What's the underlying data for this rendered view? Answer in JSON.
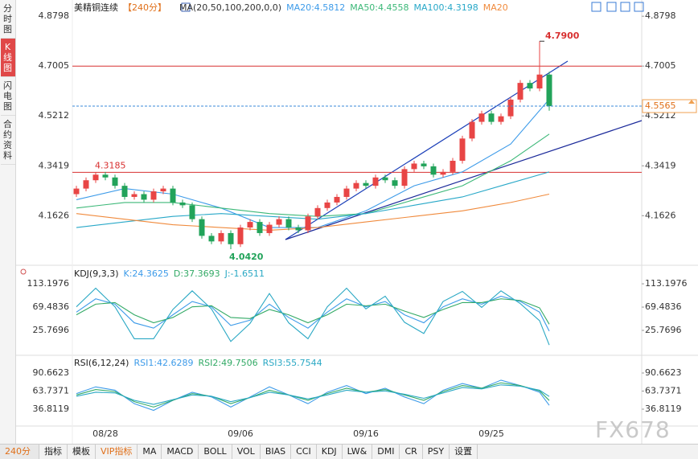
{
  "chart_data": [
    {
      "type": "candlestick",
      "title": "美精铜连续",
      "period": "【240分】",
      "indicator": "MA(20,50,100,200,0,0)",
      "categories": [
        null,
        null,
        null,
        "08/28",
        null,
        null,
        null,
        null,
        null,
        null,
        null,
        null,
        null,
        null,
        null,
        null,
        null,
        "09/06",
        null,
        null,
        null,
        null,
        null,
        null,
        null,
        null,
        null,
        null,
        null,
        null,
        "09/16",
        null,
        null,
        null,
        null,
        null,
        null,
        null,
        null,
        null,
        null,
        null,
        null,
        "09/25",
        null,
        null,
        null,
        null,
        null,
        null
      ],
      "open": [
        4.24,
        4.26,
        4.29,
        4.31,
        4.3,
        4.27,
        4.23,
        4.24,
        4.22,
        4.25,
        4.26,
        4.21,
        4.2,
        4.15,
        4.09,
        4.07,
        4.1,
        4.06,
        4.12,
        4.14,
        4.1,
        4.13,
        4.15,
        4.12,
        4.11,
        4.16,
        4.19,
        4.21,
        4.23,
        4.26,
        4.28,
        4.27,
        4.3,
        4.29,
        4.27,
        4.33,
        4.35,
        4.34,
        4.31,
        4.32,
        4.36,
        4.44,
        4.5,
        4.53,
        4.5,
        4.52,
        4.58,
        4.64,
        4.62,
        4.67
      ],
      "high": [
        4.27,
        4.3,
        4.3185,
        4.32,
        4.31,
        4.28,
        4.25,
        4.25,
        4.26,
        4.27,
        4.27,
        4.22,
        4.21,
        4.16,
        4.1,
        4.11,
        4.11,
        4.13,
        4.15,
        4.15,
        4.14,
        4.16,
        4.16,
        4.13,
        4.17,
        4.2,
        4.22,
        4.24,
        4.27,
        4.29,
        4.29,
        4.31,
        4.31,
        4.3,
        4.34,
        4.36,
        4.36,
        4.35,
        4.33,
        4.37,
        4.45,
        4.51,
        4.54,
        4.54,
        4.53,
        4.59,
        4.65,
        4.65,
        4.79,
        4.68
      ],
      "low": [
        4.23,
        4.25,
        4.28,
        4.29,
        4.26,
        4.22,
        4.22,
        4.21,
        4.21,
        4.24,
        4.2,
        4.19,
        4.14,
        4.08,
        4.06,
        4.06,
        4.042,
        4.05,
        4.11,
        4.09,
        4.09,
        4.12,
        4.11,
        4.1,
        4.1,
        4.15,
        4.18,
        4.2,
        4.22,
        4.25,
        4.26,
        4.26,
        4.28,
        4.26,
        4.26,
        4.32,
        4.33,
        4.3,
        4.3,
        4.31,
        4.35,
        4.43,
        4.49,
        4.49,
        4.49,
        4.51,
        4.57,
        4.61,
        4.61,
        4.54
      ],
      "close": [
        4.26,
        4.29,
        4.31,
        4.3,
        4.27,
        4.23,
        4.24,
        4.22,
        4.25,
        4.26,
        4.21,
        4.2,
        4.15,
        4.09,
        4.07,
        4.1,
        4.06,
        4.12,
        4.14,
        4.1,
        4.13,
        4.15,
        4.12,
        4.11,
        4.16,
        4.19,
        4.21,
        4.23,
        4.26,
        4.28,
        4.27,
        4.3,
        4.29,
        4.27,
        4.33,
        4.35,
        4.34,
        4.31,
        4.32,
        4.36,
        4.44,
        4.5,
        4.53,
        4.5,
        4.52,
        4.58,
        4.64,
        4.62,
        4.67,
        4.5565
      ],
      "up_color": "#e84545",
      "down_color": "#22a35a",
      "ylim": [
        3.99,
        4.915
      ],
      "yticks": [
        4.8798,
        4.7005,
        4.5212,
        4.3419,
        4.1626
      ],
      "grid": false,
      "series": [
        {
          "name": "MA20",
          "label": "MA20:4.5812",
          "color": "#3d9be9",
          "x": [
            0,
            5,
            10,
            15,
            20,
            25,
            30,
            35,
            40,
            45,
            49
          ],
          "values": [
            4.22,
            4.26,
            4.24,
            4.19,
            4.12,
            4.12,
            4.18,
            4.27,
            4.32,
            4.42,
            4.5812
          ]
        },
        {
          "name": "MA50",
          "label": "MA50:4.4558",
          "color": "#3cb878",
          "x": [
            0,
            5,
            10,
            15,
            20,
            25,
            30,
            35,
            40,
            45,
            49
          ],
          "values": [
            4.19,
            4.21,
            4.21,
            4.19,
            4.17,
            4.16,
            4.17,
            4.22,
            4.27,
            4.36,
            4.4558
          ]
        },
        {
          "name": "MA100",
          "label": "MA100:4.3198",
          "color": "#28a8c8",
          "x": [
            0,
            5,
            10,
            15,
            20,
            25,
            30,
            35,
            40,
            45,
            49
          ],
          "values": [
            4.12,
            4.14,
            4.16,
            4.17,
            4.16,
            4.15,
            4.17,
            4.2,
            4.23,
            4.28,
            4.3198
          ]
        },
        {
          "name": "MA20",
          "label": "MA20",
          "color": "#f08a3c",
          "x": [
            0,
            5,
            10,
            15,
            20,
            25,
            30,
            35,
            40,
            45,
            49
          ],
          "values": [
            4.17,
            4.15,
            4.13,
            4.12,
            4.11,
            4.12,
            4.14,
            4.16,
            4.18,
            4.21,
            4.24
          ]
        }
      ],
      "hlines": [
        4.7005,
        4.3185
      ],
      "last_price": 4.5565,
      "high_label": {
        "value": 4.79,
        "label": "4.7900"
      },
      "low_label": {
        "value": 4.042,
        "label": "4.0420"
      }
    },
    {
      "type": "line",
      "title": "KDJ(9,3,3)",
      "x": [
        0,
        2,
        4,
        6,
        8,
        10,
        12,
        14,
        16,
        18,
        20,
        22,
        24,
        26,
        28,
        30,
        32,
        34,
        36,
        38,
        40,
        42,
        44,
        46,
        48,
        49
      ],
      "ylim": [
        -18,
        145
      ],
      "yticks": [
        113.1976,
        69.4836,
        25.7696
      ],
      "series": [
        {
          "name": "K",
          "label": "K:24.3625",
          "color": "#3d9be9",
          "values": [
            60,
            85,
            75,
            40,
            30,
            55,
            80,
            70,
            35,
            45,
            75,
            50,
            30,
            60,
            85,
            70,
            80,
            55,
            40,
            70,
            85,
            75,
            90,
            80,
            60,
            24.3625
          ]
        },
        {
          "name": "D",
          "label": "D:37.3693",
          "color": "#33aa66",
          "values": [
            55,
            75,
            78,
            55,
            40,
            50,
            70,
            72,
            50,
            48,
            65,
            55,
            40,
            55,
            75,
            72,
            75,
            62,
            50,
            65,
            78,
            78,
            85,
            82,
            68,
            37.3693
          ]
        },
        {
          "name": "J",
          "label": "J:-1.6511",
          "color": "#2aa8c4",
          "values": [
            70,
            105,
            70,
            10,
            10,
            65,
            100,
            66,
            5,
            39,
            95,
            40,
            10,
            70,
            105,
            66,
            90,
            41,
            20,
            80,
            99,
            69,
            100,
            76,
            44,
            -1.6511
          ]
        }
      ]
    },
    {
      "type": "line",
      "title": "RSI(6,12,24)",
      "x": [
        0,
        2,
        4,
        6,
        8,
        10,
        12,
        14,
        16,
        18,
        20,
        22,
        24,
        26,
        28,
        30,
        32,
        34,
        36,
        38,
        40,
        42,
        44,
        46,
        48,
        49
      ],
      "ylim": [
        11.7,
        114.6
      ],
      "yticks": [
        90.6623,
        63.7371,
        36.8119
      ],
      "series": [
        {
          "name": "RSI1",
          "label": "RSI1:42.6289",
          "color": "#3d9be9",
          "values": [
            60,
            70,
            65,
            45,
            35,
            50,
            62,
            55,
            40,
            55,
            70,
            58,
            45,
            62,
            72,
            60,
            68,
            55,
            45,
            65,
            75,
            68,
            80,
            72,
            62,
            42.6289
          ]
        },
        {
          "name": "RSI2",
          "label": "RSI2:49.7506",
          "color": "#33aa66",
          "values": [
            58,
            66,
            63,
            48,
            40,
            50,
            60,
            56,
            45,
            54,
            65,
            58,
            50,
            60,
            68,
            62,
            66,
            58,
            50,
            63,
            72,
            68,
            76,
            72,
            64,
            49.7506
          ]
        },
        {
          "name": "RSI3",
          "label": "RSI3:55.7544",
          "color": "#2aa8c4",
          "values": [
            56,
            62,
            61,
            50,
            44,
            51,
            58,
            56,
            48,
            54,
            62,
            58,
            52,
            58,
            65,
            62,
            64,
            59,
            53,
            61,
            69,
            67,
            73,
            71,
            65,
            55.7544
          ]
        }
      ]
    }
  ],
  "sidebar": [
    "分时图",
    "K线图",
    "闪电图",
    "合约资料"
  ],
  "toolbar": {
    "period": "240分",
    "tabs": [
      "指标",
      "模板",
      "VIP指标",
      "MA",
      "MACD",
      "BOLL",
      "VOL",
      "BIAS",
      "CCI",
      "KDJ",
      "LW&",
      "DMI",
      "CR",
      "PSY",
      "设置"
    ]
  },
  "watermark": "FX678"
}
